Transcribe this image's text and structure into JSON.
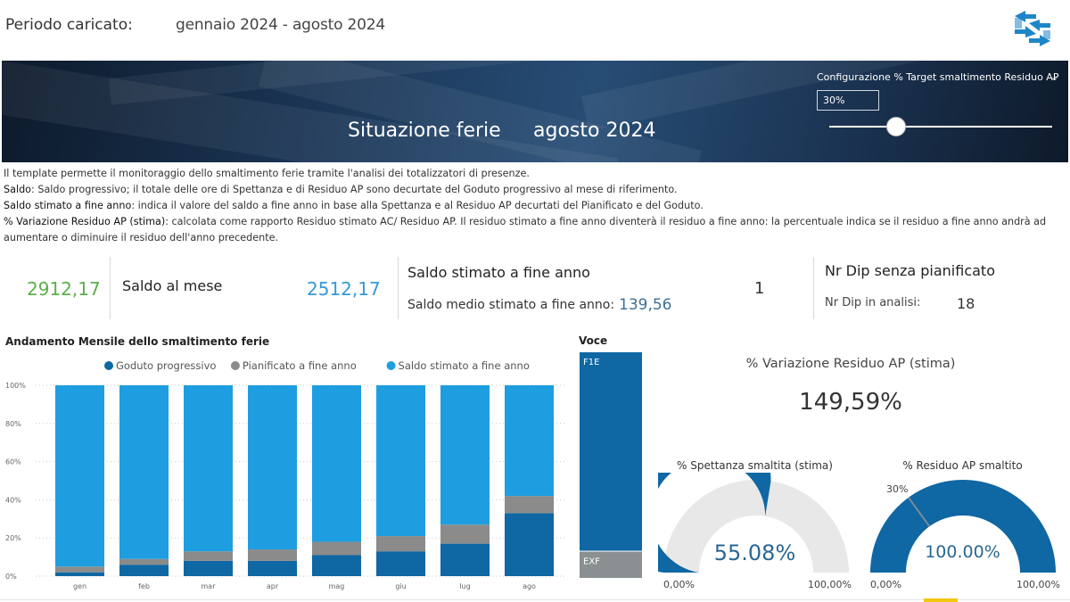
{
  "header": {
    "period_label": "Periodo caricato:",
    "period_value": "gennaio 2024 - agosto 2024",
    "logo": "arrows-logo"
  },
  "banner": {
    "title": "Situazione ferie",
    "date": "agosto 2024",
    "slider": {
      "label": "Configurazione % Target smaltimento Residuo AP",
      "value": "30%",
      "level": 0.3,
      "chevron": "chevron-down-icon"
    }
  },
  "description": {
    "line1": "Il template permette il monitoraggio dello smaltimento ferie tramite l'analisi dei totalizzatori di presenze.",
    "line2_key": "Saldo",
    "line2": ": Saldo progressivo; il totale delle ore di Spettanza e di Residuo AP sono decurtate del Goduto progressivo al mese di riferimento.",
    "line3_key": "Saldo stimato a fine anno",
    "line3": ": indica il valore del saldo a fine anno in base alla Spettanza e al Residuo AP decurtati del Pianificato e del Goduto.",
    "line4_key": "% Variazione Residuo AP (stima)",
    "line4": ": calcolata come rapporto Residuo stimato AC/ Residuo AP. Il residuo stimato a fine anno diventerà il residuo a fine anno: la percentuale indica se il residuo a fine anno andrà ad aumentare o diminuire il residuo dell'anno precedente."
  },
  "kpis": {
    "green_value": "2912,17",
    "saldo_label": "Saldo al mese",
    "blue_value": "2512,17",
    "saldo_stimato_title": "Saldo stimato a fine anno",
    "saldo_medio_label": "Saldo medio stimato a fine anno:",
    "saldo_medio_value": "139,56",
    "one_value": "1",
    "nrdip_title": "Nr Dip senza pianificato",
    "nrdip_label": "Nr Dip in analisi:",
    "nrdip_value": "18"
  },
  "chart_data": {
    "type": "bar",
    "title": "Andamento Mensile dello smaltimento ferie",
    "stacked": true,
    "categories": [
      "gen",
      "feb",
      "mar",
      "apr",
      "mag",
      "giu",
      "lug",
      "ago"
    ],
    "series": [
      {
        "name": "Goduto progressivo",
        "color": "#0f67a3",
        "values": [
          2,
          6,
          8,
          8,
          11,
          13,
          17,
          33
        ]
      },
      {
        "name": "Pianificato a fine anno",
        "color": "#8b8b8b",
        "values": [
          3,
          3,
          5,
          6,
          7,
          8,
          10,
          9
        ]
      },
      {
        "name": "Saldo stimato a fine anno",
        "color": "#1e9ee0",
        "values": [
          95,
          91,
          87,
          86,
          82,
          79,
          73,
          58
        ]
      }
    ],
    "y_ticks": [
      "0%",
      "20%",
      "40%",
      "60%",
      "80%",
      "100%"
    ],
    "ylim": [
      0,
      100
    ],
    "legend": "top",
    "grid": true
  },
  "voce": {
    "title": "Voce",
    "segments": [
      {
        "label": "F1E",
        "value": 88,
        "color": "#0f67a3"
      },
      {
        "label": "EXF",
        "value": 12,
        "color": "#8a9091"
      }
    ]
  },
  "variazione": {
    "label": "% Variazione Residuo AP (stima)",
    "value": "149,59%"
  },
  "gauges": {
    "spettanza": {
      "title": "% Spettanza smaltita (stima)",
      "value_text": "55.08%",
      "fraction": 0.5508,
      "min": "0,00%",
      "max": "100,00%",
      "fill": "#0f67a3",
      "track": "#e8e8e8"
    },
    "residuo": {
      "title": "% Residuo AP smaltito",
      "value_text": "100.00%",
      "fraction": 1.0,
      "target_fraction": 0.3,
      "target_label": "30%",
      "min": "0,00%",
      "max": "100,00%",
      "fill": "#0f67a3",
      "track": "#e8e8e8"
    }
  }
}
